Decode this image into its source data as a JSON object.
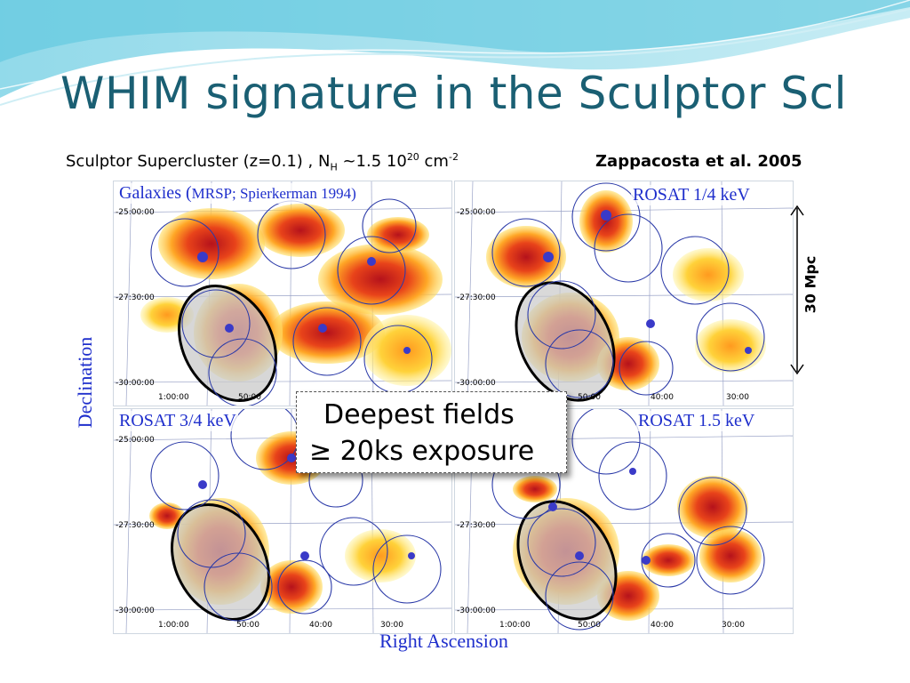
{
  "title": "WHIM signature in the Sculptor Scl",
  "subtitle": {
    "lead": "Sculptor Supercluster (z=0.1) , N",
    "nh_sub": "H",
    "mid": " ~1.5 10",
    "exp": "20",
    "unit": " cm",
    "unit_exp": "-2"
  },
  "reference": "Zappacosta et al. 2005",
  "panels": [
    {
      "label_main": "Galaxies (",
      "label_small": "MRSP; Spierkerman 1994)"
    },
    {
      "label_main": "ROSAT 1/4 keV",
      "label_small": ""
    },
    {
      "label_main": "ROSAT 3/4 keV",
      "label_small": ""
    },
    {
      "label_main": "ROSAT 1.5 keV",
      "label_small": ""
    }
  ],
  "dec_ticks": [
    "-25:00:00",
    "-27:30:00",
    "-30:00:00"
  ],
  "ra_ticks": [
    "1:00:00",
    "50:00",
    "40:00",
    "30:00"
  ],
  "x_axis_label": "Right Ascension",
  "y_axis_label": "Declination",
  "scale_bar_label": "30 Mpc",
  "callout": {
    "line1": "Deepest  fields",
    "line2": "≥ 20ks exposure"
  },
  "colors": {
    "title": "#1a5f73",
    "panel_label": "#1f2fcc",
    "circle": "#2b3aa8",
    "blob_inner": "#e23b12",
    "blob_outer": "#ffd23a",
    "core": "#3a3ac8"
  }
}
